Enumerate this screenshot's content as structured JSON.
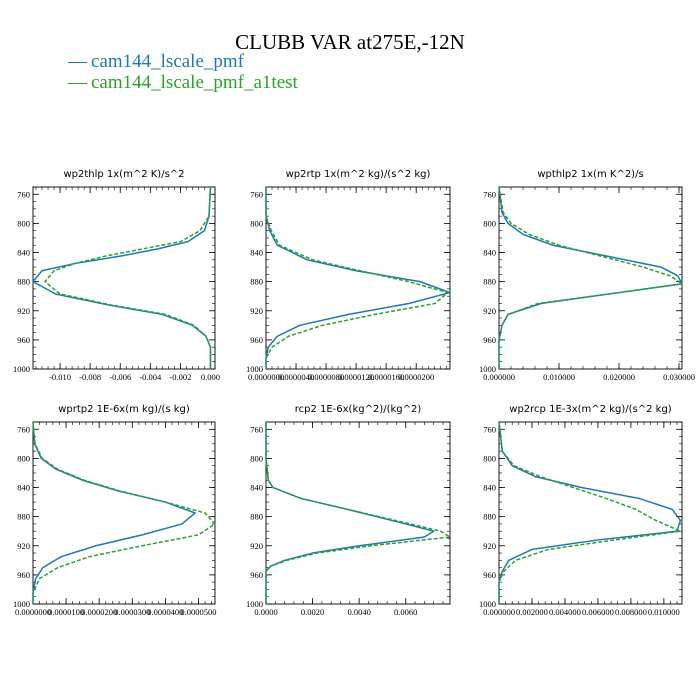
{
  "figure": {
    "title": "CLUBB VAR at275E,-12N",
    "legend": [
      {
        "dash": "—",
        "label": "cam144_lscale_pmf",
        "color": "#1f77b4"
      },
      {
        "dash": "—",
        "label": "cam144_lscale_pmf_a1test",
        "color": "#2ca02c"
      }
    ]
  },
  "chart_data": [
    {
      "type": "line",
      "title": "wp2thlp  1x(m^2 K)/s^2",
      "xlim": [
        -0.0118,
        0.0003
      ],
      "ylim": [
        1000,
        750
      ],
      "xticks": [
        -0.01,
        -0.008,
        -0.006,
        -0.004,
        -0.002,
        0.0
      ],
      "xtick_labels": [
        "-0.010",
        "-0.008",
        "-0.006",
        "-0.004",
        "-0.002",
        "0.000"
      ],
      "yticks": [
        760,
        800,
        840,
        880,
        920,
        960,
        1000
      ],
      "y": [
        750,
        790,
        810,
        825,
        835,
        845,
        855,
        865,
        880,
        897,
        912,
        925,
        940,
        955,
        970,
        990,
        1000
      ],
      "series": [
        {
          "name": "cam144_lscale_pmf",
          "color": "#1f77b4",
          "dashed": false,
          "x": [
            0.0,
            -0.0001,
            -0.0004,
            -0.0015,
            -0.0035,
            -0.006,
            -0.009,
            -0.0112,
            -0.0118,
            -0.0103,
            -0.0068,
            -0.0032,
            -0.0012,
            -0.0003,
            0.0,
            0.0,
            0.0
          ]
        },
        {
          "name": "cam144_lscale_pmf_a1test",
          "color": "#2ca02c",
          "dashed": true,
          "x": [
            0.0,
            -0.0001,
            -0.0007,
            -0.002,
            -0.0045,
            -0.007,
            -0.009,
            -0.0104,
            -0.011,
            -0.01,
            -0.0066,
            -0.003,
            -0.0011,
            -0.0003,
            0.0,
            0.0,
            0.0
          ]
        }
      ]
    },
    {
      "type": "line",
      "title": "wp2rtp  1x(m^2 kg)/(s^2 kg)",
      "xlim": [
        0.0,
        2.45e-05
      ],
      "ylim": [
        1000,
        750
      ],
      "xticks": [
        0.0,
        4e-06,
        8e-06,
        1.2e-05,
        1.6e-05,
        2e-05
      ],
      "xtick_labels": [
        "0.0000000",
        "0.0000040",
        "0.0000080",
        "0.0000120",
        "0.0000160",
        "0.0000200"
      ],
      "yticks": [
        760,
        800,
        840,
        880,
        920,
        960,
        1000
      ],
      "y": [
        750,
        790,
        810,
        830,
        850,
        865,
        880,
        895,
        910,
        925,
        940,
        955,
        970,
        985,
        1000
      ],
      "series": [
        {
          "name": "cam144_lscale_pmf",
          "color": "#1f77b4",
          "dashed": false,
          "x": [
            0.0,
            0.0,
            5e-07,
            1.5e-06,
            5.5e-06,
            1.2e-05,
            2.05e-05,
            2.45e-05,
            1.9e-05,
            1.1e-05,
            4.5e-06,
            1.5e-06,
            3e-07,
            0.0,
            0.0
          ]
        },
        {
          "name": "cam144_lscale_pmf_a1test",
          "color": "#2ca02c",
          "dashed": true,
          "x": [
            0.0,
            0.0,
            7e-07,
            1.8e-06,
            6.2e-06,
            1.25e-05,
            1.9e-05,
            2.42e-05,
            2.25e-05,
            1.45e-05,
            7.5e-06,
            3e-06,
            8e-07,
            0.0,
            0.0
          ]
        }
      ]
    },
    {
      "type": "line",
      "title": "wpthlp2  1x(m K^2)/s",
      "xlim": [
        0.0,
        0.0305
      ],
      "ylim": [
        1000,
        750
      ],
      "xticks": [
        0.0,
        0.01,
        0.02,
        0.03
      ],
      "xtick_labels": [
        "0.000000",
        "0.010000",
        "0.020000",
        "0.030000"
      ],
      "yticks": [
        760,
        800,
        840,
        880,
        920,
        960,
        1000
      ],
      "y": [
        750,
        785,
        800,
        815,
        830,
        845,
        860,
        872,
        883,
        895,
        910,
        925,
        940,
        960,
        1000
      ],
      "series": [
        {
          "name": "cam144_lscale_pmf",
          "color": "#1f77b4",
          "dashed": false,
          "x": [
            0.0,
            0.0005,
            0.0015,
            0.004,
            0.009,
            0.018,
            0.027,
            0.0298,
            0.0305,
            0.02,
            0.007,
            0.0015,
            0.0005,
            0.0,
            0.0
          ]
        },
        {
          "name": "cam144_lscale_pmf_a1test",
          "color": "#2ca02c",
          "dashed": true,
          "x": [
            0.0,
            0.0007,
            0.002,
            0.005,
            0.01,
            0.017,
            0.024,
            0.0285,
            0.0305,
            0.02,
            0.0065,
            0.0015,
            0.0005,
            0.0,
            0.0
          ]
        }
      ]
    },
    {
      "type": "line",
      "title": "wprtp2  1E-6x(m kg)/(s kg)",
      "xlim": [
        0.0,
        5.5e-05
      ],
      "ylim": [
        1000,
        750
      ],
      "xticks": [
        0.0,
        1e-05,
        2e-05,
        3e-05,
        4e-05,
        5e-05
      ],
      "xtick_labels": [
        "0.0000000",
        "0.0000100",
        "0.0000200",
        "0.0000300",
        "0.0000400",
        "0.0000500"
      ],
      "yticks": [
        760,
        800,
        840,
        880,
        920,
        960,
        1000
      ],
      "y": [
        750,
        780,
        800,
        815,
        830,
        845,
        860,
        875,
        890,
        905,
        920,
        935,
        950,
        965,
        985,
        1000
      ],
      "series": [
        {
          "name": "cam144_lscale_pmf",
          "color": "#1f77b4",
          "dashed": false,
          "x": [
            0.0,
            5e-07,
            2.5e-06,
            7e-06,
            1.5e-05,
            2.6e-05,
            4e-05,
            4.9e-05,
            4.5e-05,
            3.3e-05,
            1.9e-05,
            8.5e-06,
            3e-06,
            8e-07,
            0.0,
            0.0
          ]
        },
        {
          "name": "cam144_lscale_pmf_a1test",
          "color": "#2ca02c",
          "dashed": true,
          "x": [
            0.0,
            6e-07,
            2.8e-06,
            7.5e-06,
            1.55e-05,
            2.65e-05,
            4e-05,
            5.2e-05,
            5.5e-05,
            5e-05,
            3.3e-05,
            1.7e-05,
            7.5e-06,
            2e-06,
            0.0,
            0.0
          ]
        }
      ]
    },
    {
      "type": "line",
      "title": "rcp2  1E-6x(kg^2)/(kg^2)",
      "xlim": [
        0.0,
        0.0079
      ],
      "ylim": [
        1000,
        750
      ],
      "xticks": [
        0.0,
        0.002,
        0.004,
        0.006
      ],
      "xtick_labels": [
        "0.0000",
        "0.0020",
        "0.0040",
        "0.0060"
      ],
      "yticks": [
        760,
        800,
        840,
        880,
        920,
        960,
        1000
      ],
      "y": [
        750,
        800,
        830,
        840,
        845,
        855,
        870,
        890,
        900,
        908,
        920,
        930,
        940,
        948,
        955,
        962,
        970,
        985,
        1000
      ],
      "series": [
        {
          "name": "cam144_lscale_pmf",
          "color": "#1f77b4",
          "dashed": false,
          "x": [
            0.0,
            0.0,
            0.0001,
            0.0003,
            0.0007,
            0.0015,
            0.0035,
            0.006,
            0.0072,
            0.0068,
            0.004,
            0.002,
            0.0008,
            0.0002,
            0.0,
            0.0,
            0.0,
            0.0,
            0.0
          ]
        },
        {
          "name": "cam144_lscale_pmf_a1test",
          "color": "#2ca02c",
          "dashed": true,
          "x": [
            0.0,
            0.0,
            0.0001,
            0.0003,
            0.0007,
            0.0015,
            0.0035,
            0.0062,
            0.0075,
            0.0079,
            0.0045,
            0.0022,
            0.0009,
            0.0002,
            0.0,
            0.0,
            0.0,
            0.0,
            0.0
          ]
        }
      ]
    },
    {
      "type": "line",
      "title": "wp2rcp  1E-3x(m^2 kg)/(s^2 kg)",
      "xlim": [
        0.0,
        0.0111
      ],
      "ylim": [
        1000,
        750
      ],
      "xticks": [
        0.0,
        0.002,
        0.004,
        0.006,
        0.008,
        0.01
      ],
      "xtick_labels": [
        "0.000000",
        "0.002000",
        "0.004000",
        "0.006000",
        "0.008000",
        "0.010000"
      ],
      "yticks": [
        760,
        800,
        840,
        880,
        920,
        960,
        1000
      ],
      "y": [
        750,
        790,
        810,
        825,
        840,
        855,
        870,
        885,
        900,
        912,
        925,
        940,
        955,
        970,
        985,
        1000
      ],
      "series": [
        {
          "name": "cam144_lscale_pmf",
          "color": "#1f77b4",
          "dashed": false,
          "x": [
            0.0,
            0.0002,
            0.0008,
            0.0022,
            0.005,
            0.0085,
            0.0105,
            0.011,
            0.0108,
            0.006,
            0.002,
            0.0006,
            0.0002,
            0.0,
            0.0,
            0.0
          ]
        },
        {
          "name": "cam144_lscale_pmf_a1test",
          "color": "#2ca02c",
          "dashed": true,
          "x": [
            0.0,
            0.0002,
            0.0009,
            0.0025,
            0.0045,
            0.0065,
            0.0083,
            0.0095,
            0.011,
            0.007,
            0.003,
            0.001,
            0.0003,
            0.0,
            0.0,
            0.0
          ]
        }
      ]
    }
  ]
}
